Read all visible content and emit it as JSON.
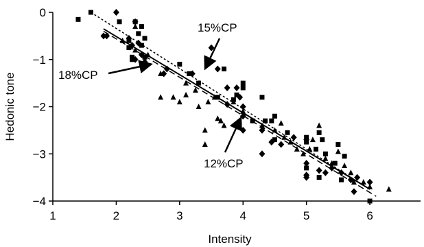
{
  "chart_data": {
    "type": "scatter",
    "xlabel": "Intensity",
    "ylabel": "Hedonic tone",
    "xlim": [
      1,
      6.8
    ],
    "ylim": [
      -4,
      0
    ],
    "xticks": [
      1,
      2,
      3,
      4,
      5,
      6
    ],
    "yticks": [
      0,
      -1,
      -2,
      -3,
      -4
    ],
    "grid": false,
    "legend": "none",
    "series": [
      {
        "marker": "square",
        "points": [
          [
            1.4,
            -0.15
          ],
          [
            1.6,
            0.0
          ],
          [
            2.05,
            -0.2
          ],
          [
            2.2,
            -0.6
          ],
          [
            2.3,
            -0.2
          ],
          [
            2.35,
            -0.45
          ],
          [
            2.4,
            -0.3
          ],
          [
            2.45,
            -0.55
          ],
          [
            2.2,
            -0.75
          ],
          [
            2.4,
            -0.7
          ],
          [
            2.25,
            -0.95
          ],
          [
            2.45,
            -0.95
          ],
          [
            2.25,
            -1.0
          ],
          [
            3.0,
            -1.1
          ],
          [
            3.15,
            -1.3
          ],
          [
            3.3,
            -1.5
          ],
          [
            3.6,
            -1.8
          ],
          [
            3.85,
            -1.85
          ],
          [
            3.9,
            -1.75
          ],
          [
            4.0,
            -1.6
          ],
          [
            4.0,
            -1.5
          ],
          [
            3.7,
            -1.2
          ],
          [
            4.3,
            -1.8
          ],
          [
            4.15,
            -2.3
          ],
          [
            4.35,
            -2.3
          ],
          [
            4.45,
            -2.3
          ],
          [
            4.5,
            -2.2
          ],
          [
            4.5,
            -2.7
          ],
          [
            4.7,
            -2.55
          ],
          [
            5.0,
            -2.65
          ],
          [
            5.0,
            -2.75
          ],
          [
            5.15,
            -2.9
          ],
          [
            5.2,
            -2.55
          ],
          [
            5.25,
            -2.7
          ],
          [
            5.3,
            -3.0
          ],
          [
            5.5,
            -2.8
          ],
          [
            5.45,
            -3.2
          ],
          [
            5.6,
            -3.05
          ],
          [
            5.0,
            -3.3
          ],
          [
            5.2,
            -3.5
          ],
          [
            5.55,
            -3.55
          ],
          [
            6.0,
            -4.0
          ]
        ]
      },
      {
        "marker": "diamond",
        "points": [
          [
            1.8,
            -0.5
          ],
          [
            1.85,
            -0.5
          ],
          [
            2.0,
            0.0
          ],
          [
            2.2,
            -0.55
          ],
          [
            2.3,
            -0.2
          ],
          [
            2.25,
            -0.7
          ],
          [
            2.35,
            -0.65
          ],
          [
            2.4,
            -0.9
          ],
          [
            2.3,
            -1.0
          ],
          [
            2.45,
            -1.05
          ],
          [
            2.8,
            -1.2
          ],
          [
            2.75,
            -1.3
          ],
          [
            3.2,
            -1.3
          ],
          [
            3.5,
            -0.75
          ],
          [
            3.6,
            -1.2
          ],
          [
            3.75,
            -1.6
          ],
          [
            3.9,
            -1.6
          ],
          [
            3.75,
            -1.95
          ],
          [
            3.95,
            -1.8
          ],
          [
            4.0,
            -2.0
          ],
          [
            4.3,
            -2.5
          ],
          [
            4.0,
            -2.2
          ],
          [
            4.0,
            -2.5
          ],
          [
            4.6,
            -2.8
          ],
          [
            4.45,
            -2.75
          ],
          [
            4.3,
            -3.0
          ],
          [
            4.8,
            -2.65
          ],
          [
            5.0,
            -2.7
          ],
          [
            5.0,
            -3.2
          ],
          [
            5.0,
            -3.45
          ],
          [
            5.0,
            -3.5
          ],
          [
            5.2,
            -3.35
          ],
          [
            5.3,
            -3.4
          ],
          [
            5.4,
            -3.3
          ],
          [
            5.55,
            -3.4
          ],
          [
            5.7,
            -3.55
          ],
          [
            5.8,
            -3.5
          ],
          [
            6.0,
            -3.6
          ],
          [
            5.75,
            -3.8
          ]
        ]
      },
      {
        "marker": "triangle",
        "points": [
          [
            2.3,
            -0.3
          ],
          [
            2.1,
            -0.6
          ],
          [
            2.3,
            -0.8
          ],
          [
            2.5,
            -0.9
          ],
          [
            2.7,
            -1.3
          ],
          [
            2.7,
            -1.8
          ],
          [
            2.9,
            -1.8
          ],
          [
            3.0,
            -1.9
          ],
          [
            3.1,
            -1.5
          ],
          [
            3.1,
            -1.75
          ],
          [
            3.25,
            -1.65
          ],
          [
            3.3,
            -2.0
          ],
          [
            3.45,
            -1.9
          ],
          [
            3.55,
            -1.8
          ],
          [
            3.6,
            -2.25
          ],
          [
            3.65,
            -2.3
          ],
          [
            3.4,
            -2.5
          ],
          [
            3.4,
            -2.8
          ],
          [
            3.7,
            -2.4
          ],
          [
            3.85,
            -1.9
          ],
          [
            4.0,
            -2.1
          ],
          [
            4.3,
            -2.4
          ],
          [
            4.5,
            -2.5
          ],
          [
            4.6,
            -2.35
          ],
          [
            4.65,
            -2.65
          ],
          [
            4.75,
            -2.75
          ],
          [
            4.85,
            -2.9
          ],
          [
            4.95,
            -3.0
          ],
          [
            5.05,
            -2.9
          ],
          [
            5.1,
            -2.7
          ],
          [
            5.2,
            -2.4
          ],
          [
            5.3,
            -3.1
          ],
          [
            5.4,
            -3.2
          ],
          [
            5.5,
            -2.95
          ],
          [
            5.6,
            -3.25
          ],
          [
            5.7,
            -3.4
          ],
          [
            5.75,
            -3.6
          ],
          [
            5.9,
            -3.6
          ],
          [
            6.0,
            -3.7
          ],
          [
            6.3,
            -3.75
          ]
        ]
      }
    ],
    "fit_lines": [
      {
        "style": "dotted",
        "x": [
          1.6,
          6.0
        ],
        "y": [
          0.0,
          -3.75
        ]
      },
      {
        "style": "solid",
        "x": [
          1.8,
          6.0
        ],
        "y": [
          -0.35,
          -3.75
        ]
      },
      {
        "style": "dashed",
        "x": [
          1.8,
          6.1
        ],
        "y": [
          -0.4,
          -3.9
        ]
      }
    ],
    "annotations": [
      {
        "text": "15%CP"
      },
      {
        "text": "18%CP"
      },
      {
        "text": "12%CP"
      }
    ]
  }
}
